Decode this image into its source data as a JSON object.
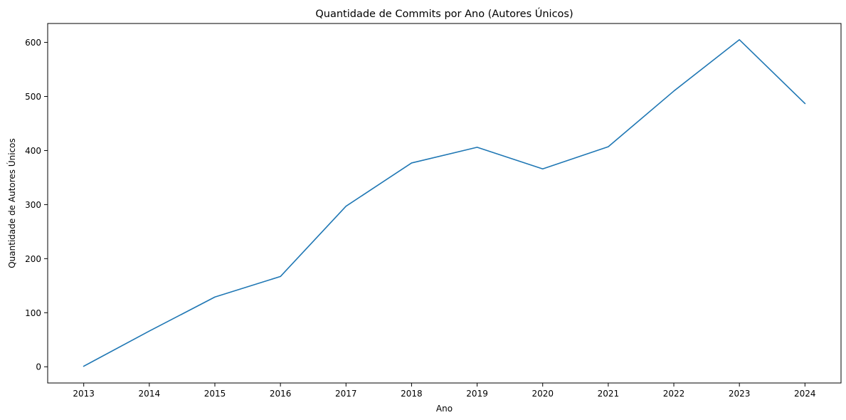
{
  "chart_data": {
    "type": "line",
    "title": "Quantidade de Commits por Ano (Autores Únicos)",
    "xlabel": "Ano",
    "ylabel": "Quantidade de Autores Únicos",
    "x": [
      2013,
      2014,
      2015,
      2016,
      2017,
      2018,
      2019,
      2020,
      2021,
      2022,
      2023,
      2024
    ],
    "series": [
      {
        "values": [
          1,
          66,
          129,
          167,
          297,
          377,
          406,
          366,
          407,
          510,
          605,
          487
        ],
        "color": "#1f77b4"
      }
    ],
    "xlim": [
      2012.45,
      2024.55
    ],
    "ylim": [
      -30,
      635
    ],
    "x_ticks": [
      "2013",
      "2014",
      "2015",
      "2016",
      "2017",
      "2018",
      "2019",
      "2020",
      "2021",
      "2022",
      "2023",
      "2024"
    ],
    "y_ticks": [
      "0",
      "100",
      "200",
      "300",
      "400",
      "500",
      "600"
    ],
    "grid": false,
    "legend": "none"
  }
}
